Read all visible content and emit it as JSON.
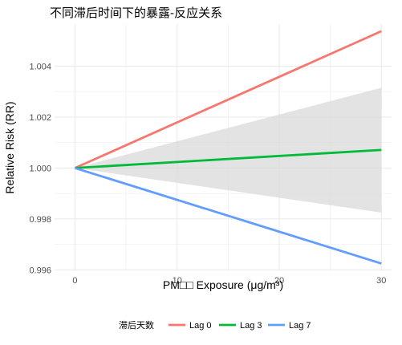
{
  "chart_data": {
    "type": "line",
    "title": "不同滞后时间下的暴露-反应关系",
    "xlabel": "PM□□ Exposure (μg/m³)",
    "ylabel": "Relative Risk (RR)",
    "xlim": [
      -2,
      31
    ],
    "ylim": [
      0.99595,
      1.00565
    ],
    "x_ticks": [
      0,
      10,
      20,
      30
    ],
    "x_tick_labels": [
      "0",
      "10",
      "20",
      "30"
    ],
    "y_ticks": [
      0.996,
      0.998,
      1.0,
      1.002,
      1.004
    ],
    "y_tick_labels": [
      "0.996",
      "0.998",
      "1.000",
      "1.002",
      "1.004"
    ],
    "grid": true,
    "legend": {
      "title": "滞后天数",
      "position": "bottom"
    },
    "series": [
      {
        "name": "Lag 0",
        "color": "#F8766D",
        "x": [
          0,
          30
        ],
        "y": [
          1.0,
          1.00537
        ]
      },
      {
        "name": "Lag 3",
        "color": "#00BA38",
        "x": [
          0,
          30
        ],
        "y": [
          1.0,
          1.00071
        ]
      },
      {
        "name": "Lag 7",
        "color": "#619CFF",
        "x": [
          0,
          30
        ],
        "y": [
          1.0,
          0.99625
        ]
      }
    ],
    "confidence_band": {
      "series": "Lag 3",
      "color": "#d9d9d9",
      "x": [
        0,
        30
      ],
      "lower": [
        1.0,
        0.99825
      ],
      "upper": [
        1.0,
        1.00315
      ]
    }
  }
}
